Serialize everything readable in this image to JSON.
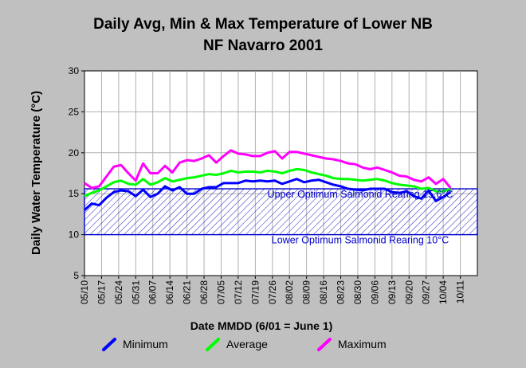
{
  "chart_data": {
    "type": "line",
    "title": "Daily Avg, Min & Max Temperature of Lower NB",
    "subtitle": "NF Navarro 2001",
    "xlabel": "Date MMDD (6/01 = June 1)",
    "ylabel": "Daily Water Temperature (°C)",
    "ylim": [
      5,
      30
    ],
    "yticks": [
      5,
      10,
      15,
      20,
      25,
      30
    ],
    "xlim": [
      0,
      161
    ],
    "x_tick_labels": [
      "05/10",
      "05/17",
      "05/24",
      "05/31",
      "06/07",
      "06/14",
      "06/21",
      "06/28",
      "07/05",
      "07/12",
      "07/19",
      "07/26",
      "08/02",
      "08/09",
      "08/16",
      "08/23",
      "08/30",
      "09/06",
      "09/13",
      "09/20",
      "09/27",
      "10/04",
      "10/11"
    ],
    "x_tick_step_days": 7,
    "grid": true,
    "legend_position": "bottom",
    "threshold_band": {
      "lower": 10,
      "upper": 15.6
    },
    "annotations": [
      {
        "text": "Upper Optimum Salmonid Rearing 15.6°C",
        "y": 15.6
      },
      {
        "text": "Lower Optimum Salmonid Rearing 10°C",
        "y": 10
      }
    ],
    "x_days": [
      0,
      3,
      6,
      9,
      12,
      15,
      18,
      21,
      24,
      27,
      30,
      33,
      36,
      39,
      42,
      45,
      48,
      51,
      54,
      57,
      60,
      63,
      66,
      69,
      72,
      75,
      78,
      81,
      84,
      87,
      90,
      93,
      96,
      99,
      102,
      105,
      108,
      111,
      114,
      117,
      120,
      123,
      126,
      129,
      132,
      135,
      138,
      141,
      144,
      147,
      150
    ],
    "series": [
      {
        "name": "Minimum",
        "color": "#0000ff",
        "values": [
          13.0,
          13.8,
          13.6,
          14.5,
          15.2,
          15.4,
          15.3,
          14.7,
          15.5,
          14.6,
          15.0,
          15.9,
          15.4,
          15.8,
          15.0,
          15.0,
          15.6,
          15.8,
          15.8,
          16.3,
          16.3,
          16.3,
          16.6,
          16.5,
          16.6,
          16.5,
          16.6,
          16.2,
          16.5,
          16.8,
          16.4,
          16.6,
          16.7,
          16.4,
          16.1,
          15.9,
          15.6,
          15.5,
          15.4,
          15.6,
          15.6,
          15.6,
          15.2,
          15.1,
          15.3,
          14.7,
          14.4,
          15.4,
          14.1,
          14.6,
          15.2
        ]
      },
      {
        "name": "Average",
        "color": "#00ff00",
        "values": [
          14.7,
          15.1,
          15.4,
          15.9,
          16.4,
          16.6,
          16.2,
          16.1,
          16.8,
          16.1,
          16.4,
          16.9,
          16.5,
          16.7,
          16.9,
          17.0,
          17.2,
          17.4,
          17.3,
          17.5,
          17.8,
          17.6,
          17.7,
          17.7,
          17.6,
          17.8,
          17.7,
          17.5,
          17.8,
          18.0,
          17.9,
          17.6,
          17.4,
          17.2,
          16.9,
          16.8,
          16.8,
          16.7,
          16.6,
          16.7,
          16.8,
          16.6,
          16.3,
          16.1,
          16.0,
          15.9,
          15.6,
          15.7,
          15.3,
          15.3,
          15.6
        ]
      },
      {
        "name": "Maximum",
        "color": "#ff00ff",
        "values": [
          16.3,
          15.7,
          15.9,
          17.1,
          18.3,
          18.5,
          17.5,
          16.6,
          18.7,
          17.5,
          17.5,
          18.4,
          17.6,
          18.8,
          19.1,
          19.0,
          19.3,
          19.7,
          18.8,
          19.6,
          20.3,
          19.9,
          19.8,
          19.6,
          19.6,
          20.0,
          20.2,
          19.3,
          20.1,
          20.1,
          19.9,
          19.7,
          19.5,
          19.3,
          19.2,
          19.0,
          18.7,
          18.6,
          18.2,
          18.0,
          18.2,
          17.9,
          17.6,
          17.2,
          17.1,
          16.7,
          16.5,
          17.0,
          16.2,
          16.8,
          15.7
        ]
      }
    ]
  }
}
